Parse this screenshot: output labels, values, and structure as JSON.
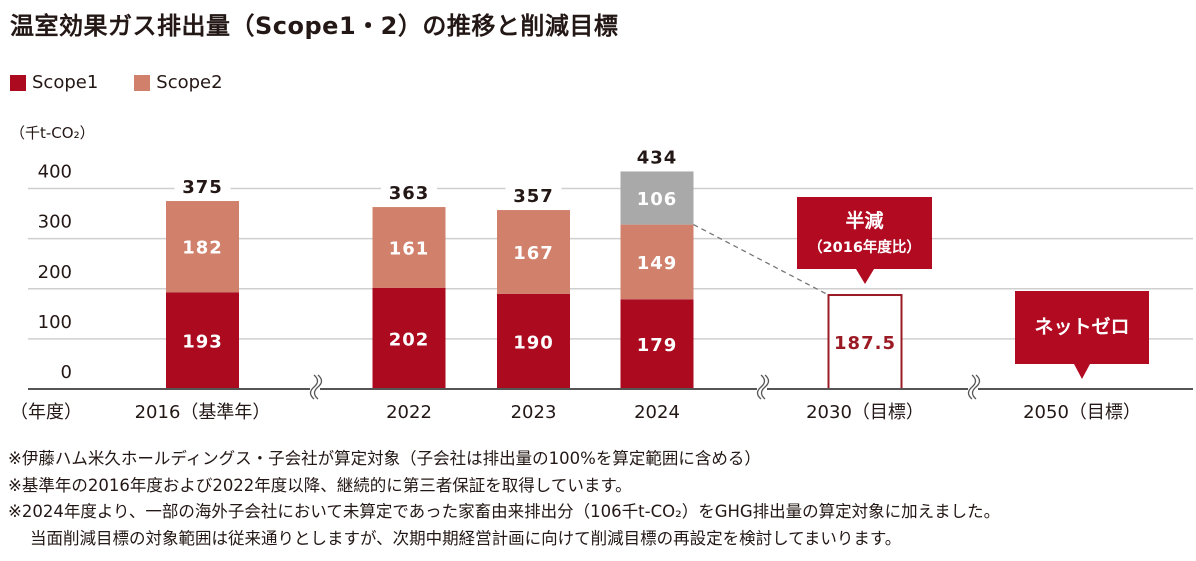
{
  "title": "温室効果ガス排出量（Scope1・2）の推移と削減目標",
  "legend": [
    {
      "name": "Scope1",
      "color": "#ab0a1f"
    },
    {
      "name": "Scope2",
      "color": "#d1806b"
    }
  ],
  "unit_label": "（千t-CO₂）",
  "chart_data": {
    "type": "bar",
    "stacked": true,
    "title": "温室効果ガス排出量（Scope1・2）の推移と削減目標",
    "xlabel": "（年度）",
    "ylabel": "（千t-CO₂）",
    "ylim": [
      0,
      400
    ],
    "yticks": [
      0,
      100,
      200,
      300,
      400
    ],
    "grid": true,
    "legend_position": "top-left",
    "categories": [
      "2016（基準年）",
      "2022",
      "2023",
      "2024",
      "2030（目標）",
      "2050（目標）"
    ],
    "series": [
      {
        "name": "Scope1",
        "color": "#ab0a1f",
        "values": [
          193,
          202,
          190,
          179,
          null,
          null
        ]
      },
      {
        "name": "Scope2",
        "color": "#d1806b",
        "values": [
          182,
          161,
          167,
          149,
          null,
          null
        ]
      },
      {
        "name": "海外子会社 家畜由来排出分",
        "color": "#a9a9a9",
        "values": [
          null,
          null,
          null,
          106,
          null,
          null
        ]
      }
    ],
    "totals": [
      375,
      363,
      357,
      434,
      null,
      null
    ],
    "targets": [
      {
        "category": "2030（目標）",
        "value": 187.5,
        "label": "187.5",
        "callout_title": "半減",
        "callout_sub": "（2016年度比）"
      },
      {
        "category": "2050（目標）",
        "value": 0,
        "callout_title": "ネットゼロ"
      }
    ],
    "axis_breaks_after": [
      "2016（基準年）",
      "2024",
      "2030（目標）"
    ],
    "colors": {
      "scope1": "#ab0a1f",
      "scope2": "#d1806b",
      "added": "#a9a9a9",
      "target_border": "#9b1b25",
      "callout": "#b10a21",
      "grid": "#cfcfcf",
      "axis": "#555555"
    }
  },
  "notes": [
    "※伊藤ハム米久ホールディングス・子会社が算定対象（子会社は排出量の100%を算定範囲に含める）",
    "※基準年の2016年度および2022年度以降、継続的に第三者保証を取得しています。",
    "※2024年度より、一部の海外子会社において未算定であった家畜由来排出分（106千t-CO₂）をGHG排出量の算定対象に加えました。",
    "当面削減目標の対象範囲は従来通りとしますが、次期中期経営計画に向けて削減目標の再設定を検討してまいります。"
  ]
}
